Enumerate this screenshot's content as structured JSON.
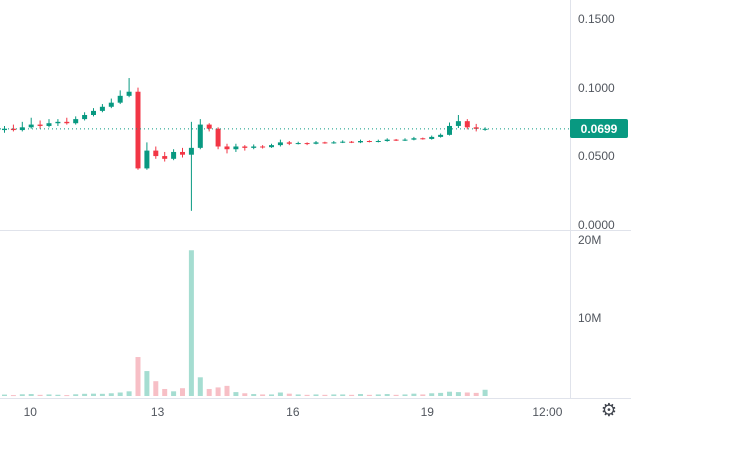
{
  "icons": {
    "gear": "⚙"
  },
  "chart_data": {
    "type": "candlestick",
    "title": "",
    "legend": "none",
    "grid": "off",
    "last_price": 0.0699,
    "last_price_label": "0.0699",
    "price_axis": {
      "range": [
        -0.004,
        0.164
      ],
      "ticks": [
        {
          "label": "0.1500",
          "value": 0.15
        },
        {
          "label": "0.1000",
          "value": 0.1
        },
        {
          "label": "0.0500",
          "value": 0.05
        },
        {
          "label": "0.0000",
          "value": 0.0
        }
      ]
    },
    "volume_axis": {
      "range": [
        0,
        21.3
      ],
      "ticks": [
        {
          "label": "20M",
          "value": 20
        },
        {
          "label": "10M",
          "value": 10
        }
      ]
    },
    "time_axis": {
      "ticks": [
        {
          "label": "10",
          "index": 2.9
        },
        {
          "label": "13",
          "index": 17.2
        },
        {
          "label": "16",
          "index": 32.4
        },
        {
          "label": "19",
          "index": 47.5
        },
        {
          "label": "12:00",
          "index": 61
        }
      ]
    },
    "series": {
      "ohlcv_columns": [
        "open",
        "high",
        "low",
        "close",
        "volume_millions"
      ],
      "candles": [
        [
          0.069,
          0.072,
          0.067,
          0.07,
          0.18
        ],
        [
          0.07,
          0.073,
          0.068,
          0.069,
          0.12
        ],
        [
          0.069,
          0.075,
          0.068,
          0.071,
          0.22
        ],
        [
          0.071,
          0.078,
          0.07,
          0.073,
          0.25
        ],
        [
          0.073,
          0.076,
          0.07,
          0.072,
          0.15
        ],
        [
          0.072,
          0.077,
          0.071,
          0.074,
          0.2
        ],
        [
          0.074,
          0.077,
          0.072,
          0.075,
          0.16
        ],
        [
          0.075,
          0.078,
          0.073,
          0.074,
          0.12
        ],
        [
          0.074,
          0.079,
          0.073,
          0.077,
          0.22
        ],
        [
          0.077,
          0.082,
          0.076,
          0.08,
          0.28
        ],
        [
          0.08,
          0.085,
          0.079,
          0.083,
          0.3
        ],
        [
          0.083,
          0.088,
          0.082,
          0.086,
          0.28
        ],
        [
          0.086,
          0.092,
          0.085,
          0.089,
          0.35
        ],
        [
          0.089,
          0.098,
          0.088,
          0.094,
          0.45
        ],
        [
          0.094,
          0.107,
          0.093,
          0.097,
          0.6
        ],
        [
          0.097,
          0.1,
          0.04,
          0.041,
          5.0
        ],
        [
          0.041,
          0.06,
          0.04,
          0.054,
          3.2
        ],
        [
          0.054,
          0.057,
          0.048,
          0.05,
          1.9
        ],
        [
          0.05,
          0.053,
          0.046,
          0.048,
          0.9
        ],
        [
          0.048,
          0.055,
          0.047,
          0.053,
          0.6
        ],
        [
          0.053,
          0.056,
          0.049,
          0.051,
          1.0
        ],
        [
          0.051,
          0.075,
          0.01,
          0.056,
          18.7
        ],
        [
          0.056,
          0.077,
          0.055,
          0.073,
          2.4
        ],
        [
          0.073,
          0.074,
          0.068,
          0.07,
          0.9
        ],
        [
          0.07,
          0.071,
          0.055,
          0.057,
          1.1
        ],
        [
          0.057,
          0.059,
          0.052,
          0.055,
          1.3
        ],
        [
          0.055,
          0.059,
          0.053,
          0.057,
          0.5
        ],
        [
          0.057,
          0.058,
          0.054,
          0.056,
          0.35
        ],
        [
          0.056,
          0.0585,
          0.055,
          0.057,
          0.25
        ],
        [
          0.057,
          0.058,
          0.0555,
          0.0565,
          0.2
        ],
        [
          0.0565,
          0.059,
          0.056,
          0.058,
          0.2
        ],
        [
          0.058,
          0.062,
          0.057,
          0.06,
          0.45
        ],
        [
          0.06,
          0.061,
          0.058,
          0.059,
          0.3
        ],
        [
          0.059,
          0.0605,
          0.0585,
          0.0595,
          0.2
        ],
        [
          0.0595,
          0.06,
          0.058,
          0.059,
          0.15
        ],
        [
          0.059,
          0.061,
          0.0585,
          0.06,
          0.2
        ],
        [
          0.06,
          0.0605,
          0.059,
          0.0595,
          0.15
        ],
        [
          0.0595,
          0.061,
          0.059,
          0.06,
          0.2
        ],
        [
          0.06,
          0.0615,
          0.0595,
          0.0605,
          0.2
        ],
        [
          0.0605,
          0.061,
          0.0595,
          0.06,
          0.15
        ],
        [
          0.06,
          0.062,
          0.0595,
          0.061,
          0.25
        ],
        [
          0.061,
          0.0615,
          0.06,
          0.0605,
          0.15
        ],
        [
          0.0605,
          0.062,
          0.06,
          0.061,
          0.2
        ],
        [
          0.061,
          0.063,
          0.0605,
          0.062,
          0.25
        ],
        [
          0.062,
          0.0625,
          0.061,
          0.0615,
          0.15
        ],
        [
          0.0615,
          0.063,
          0.061,
          0.062,
          0.2
        ],
        [
          0.062,
          0.064,
          0.0615,
          0.063,
          0.3
        ],
        [
          0.063,
          0.0635,
          0.062,
          0.0625,
          0.2
        ],
        [
          0.0625,
          0.065,
          0.062,
          0.064,
          0.35
        ],
        [
          0.064,
          0.0665,
          0.0635,
          0.0655,
          0.4
        ],
        [
          0.0655,
          0.0745,
          0.065,
          0.072,
          0.55
        ],
        [
          0.072,
          0.08,
          0.0705,
          0.0755,
          0.5
        ],
        [
          0.0755,
          0.077,
          0.0695,
          0.071,
          0.45
        ],
        [
          0.071,
          0.0735,
          0.068,
          0.0699,
          0.4
        ],
        [
          0.0695,
          0.071,
          0.0685,
          0.0699,
          0.8
        ]
      ]
    },
    "colors": {
      "up": "#089981",
      "down": "#f23645",
      "volume_up": "#a5ddd1",
      "volume_down": "#f7bfc6",
      "axis_text": "#51565e",
      "grid_line": "#e0e3eb",
      "last_price_bg": "#089981",
      "last_price_text": "#ffffff"
    }
  }
}
